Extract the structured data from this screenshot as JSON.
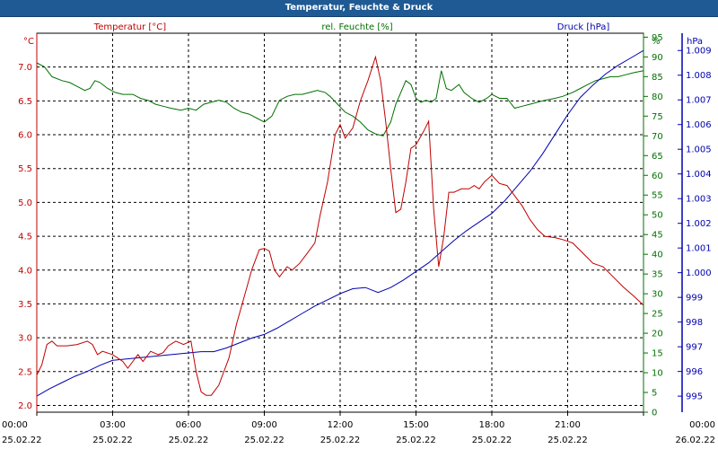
{
  "title": "Temperatur, Feuchte & Druck",
  "colors": {
    "temperature": "#c00000",
    "humidity": "#007000",
    "pressure": "#0000b0",
    "grid": "#000000",
    "titlebar": "#1f5a94"
  },
  "chart_data": {
    "type": "line",
    "title": "Temperatur, Feuchte & Druck",
    "grid": "dashed",
    "x_ticks": [
      {
        "time": "00:00",
        "date": "25.02.22"
      },
      {
        "time": "03:00",
        "date": "25.02.22"
      },
      {
        "time": "06:00",
        "date": "25.02.22"
      },
      {
        "time": "09:00",
        "date": "25.02.22"
      },
      {
        "time": "12:00",
        "date": "25.02.22"
      },
      {
        "time": "15:00",
        "date": "25.02.22"
      },
      {
        "time": "18:00",
        "date": "25.02.22"
      },
      {
        "time": "21:00",
        "date": "25.02.22"
      },
      {
        "time": "00:00",
        "date": "26.02.22"
      }
    ],
    "x_range_hours": [
      0,
      24
    ],
    "axes": {
      "temperature": {
        "label": "Temperatur [°C]",
        "unit": "°C",
        "range": [
          1.9,
          7.5
        ],
        "ticks": [
          "2.0",
          "2.5",
          "3.0",
          "3.5",
          "4.0",
          "4.5",
          "5.0",
          "5.5",
          "6.0",
          "6.5",
          "7.0"
        ]
      },
      "humidity": {
        "label": "rel. Feuchte [%]",
        "unit": "%",
        "range": [
          0,
          96
        ],
        "ticks": [
          "0",
          "5",
          "10",
          "15",
          "20",
          "25",
          "30",
          "35",
          "40",
          "45",
          "50",
          "55",
          "60",
          "65",
          "70",
          "75",
          "80",
          "85",
          "90",
          "95"
        ]
      },
      "pressure": {
        "label": "Druck [hPa]",
        "unit": "hPa",
        "range": [
          994.35,
          1009.7
        ],
        "ticks": [
          "995",
          "996",
          "997",
          "998",
          "999",
          "1.000",
          "1.001",
          "1.002",
          "1.003",
          "1.004",
          "1.005",
          "1.006",
          "1.007",
          "1.008",
          "1.009"
        ]
      }
    },
    "series": [
      {
        "name": "Temperatur [°C]",
        "axis": "temperature",
        "points": [
          [
            0,
            2.45
          ],
          [
            0.2,
            2.6
          ],
          [
            0.4,
            2.9
          ],
          [
            0.6,
            2.95
          ],
          [
            0.8,
            2.88
          ],
          [
            1.2,
            2.88
          ],
          [
            1.6,
            2.9
          ],
          [
            2.0,
            2.95
          ],
          [
            2.2,
            2.9
          ],
          [
            2.4,
            2.75
          ],
          [
            2.6,
            2.8
          ],
          [
            3.0,
            2.75
          ],
          [
            3.2,
            2.7
          ],
          [
            3.4,
            2.65
          ],
          [
            3.6,
            2.55
          ],
          [
            3.8,
            2.65
          ],
          [
            4.0,
            2.75
          ],
          [
            4.2,
            2.65
          ],
          [
            4.5,
            2.8
          ],
          [
            4.8,
            2.75
          ],
          [
            5.0,
            2.78
          ],
          [
            5.2,
            2.88
          ],
          [
            5.5,
            2.95
          ],
          [
            5.8,
            2.9
          ],
          [
            6.1,
            2.95
          ],
          [
            6.3,
            2.5
          ],
          [
            6.5,
            2.2
          ],
          [
            6.7,
            2.15
          ],
          [
            6.9,
            2.15
          ],
          [
            7.2,
            2.3
          ],
          [
            7.6,
            2.7
          ],
          [
            7.9,
            3.2
          ],
          [
            8.2,
            3.6
          ],
          [
            8.5,
            4.0
          ],
          [
            8.8,
            4.3
          ],
          [
            9.0,
            4.32
          ],
          [
            9.2,
            4.28
          ],
          [
            9.4,
            4.0
          ],
          [
            9.6,
            3.9
          ],
          [
            9.9,
            4.05
          ],
          [
            10.1,
            4.0
          ],
          [
            10.4,
            4.1
          ],
          [
            10.7,
            4.25
          ],
          [
            11.0,
            4.4
          ],
          [
            11.2,
            4.8
          ],
          [
            11.5,
            5.3
          ],
          [
            11.8,
            6.0
          ],
          [
            12.0,
            6.15
          ],
          [
            12.2,
            5.95
          ],
          [
            12.5,
            6.1
          ],
          [
            12.8,
            6.5
          ],
          [
            13.1,
            6.8
          ],
          [
            13.4,
            7.15
          ],
          [
            13.6,
            6.8
          ],
          [
            13.8,
            6.2
          ],
          [
            14.0,
            5.5
          ],
          [
            14.2,
            4.85
          ],
          [
            14.4,
            4.9
          ],
          [
            14.6,
            5.3
          ],
          [
            14.8,
            5.8
          ],
          [
            15.0,
            5.85
          ],
          [
            15.3,
            6.05
          ],
          [
            15.5,
            6.2
          ],
          [
            15.7,
            4.9
          ],
          [
            15.9,
            4.05
          ],
          [
            16.1,
            4.5
          ],
          [
            16.3,
            5.15
          ],
          [
            16.5,
            5.15
          ],
          [
            16.8,
            5.2
          ],
          [
            17.1,
            5.2
          ],
          [
            17.3,
            5.25
          ],
          [
            17.5,
            5.2
          ],
          [
            17.7,
            5.3
          ],
          [
            18.0,
            5.4
          ],
          [
            18.3,
            5.28
          ],
          [
            18.6,
            5.25
          ],
          [
            18.9,
            5.1
          ],
          [
            19.2,
            4.95
          ],
          [
            19.5,
            4.75
          ],
          [
            19.8,
            4.6
          ],
          [
            20.1,
            4.5
          ],
          [
            20.5,
            4.48
          ],
          [
            20.8,
            4.45
          ],
          [
            21.2,
            4.4
          ],
          [
            21.6,
            4.25
          ],
          [
            22.0,
            4.1
          ],
          [
            22.4,
            4.05
          ],
          [
            22.8,
            3.9
          ],
          [
            23.2,
            3.75
          ],
          [
            23.6,
            3.62
          ],
          [
            24.0,
            3.48
          ]
        ]
      },
      {
        "name": "rel. Feuchte [%]",
        "axis": "humidity",
        "points": [
          [
            0,
            88.5
          ],
          [
            0.3,
            87.5
          ],
          [
            0.6,
            85
          ],
          [
            1.0,
            84
          ],
          [
            1.3,
            83.5
          ],
          [
            1.6,
            82.5
          ],
          [
            1.9,
            81.5
          ],
          [
            2.1,
            82
          ],
          [
            2.3,
            84
          ],
          [
            2.5,
            83.5
          ],
          [
            2.8,
            82
          ],
          [
            3.1,
            81
          ],
          [
            3.4,
            80.5
          ],
          [
            3.8,
            80.5
          ],
          [
            4.1,
            79.5
          ],
          [
            4.4,
            79
          ],
          [
            4.7,
            78
          ],
          [
            5.0,
            77.5
          ],
          [
            5.3,
            77
          ],
          [
            5.7,
            76.5
          ],
          [
            6.0,
            77
          ],
          [
            6.3,
            76.5
          ],
          [
            6.6,
            78
          ],
          [
            6.9,
            78.5
          ],
          [
            7.2,
            79
          ],
          [
            7.5,
            78.5
          ],
          [
            7.8,
            77
          ],
          [
            8.1,
            76
          ],
          [
            8.4,
            75.5
          ],
          [
            8.7,
            74.5
          ],
          [
            9.0,
            73.5
          ],
          [
            9.3,
            75
          ],
          [
            9.6,
            79
          ],
          [
            9.9,
            80
          ],
          [
            10.2,
            80.5
          ],
          [
            10.5,
            80.5
          ],
          [
            10.8,
            81
          ],
          [
            11.1,
            81.5
          ],
          [
            11.4,
            81
          ],
          [
            11.6,
            80
          ],
          [
            11.9,
            78
          ],
          [
            12.2,
            76
          ],
          [
            12.5,
            75
          ],
          [
            12.8,
            73.5
          ],
          [
            13.1,
            71.5
          ],
          [
            13.4,
            70.5
          ],
          [
            13.7,
            70
          ],
          [
            14.0,
            73.5
          ],
          [
            14.2,
            78
          ],
          [
            14.4,
            81
          ],
          [
            14.6,
            84
          ],
          [
            14.8,
            83
          ],
          [
            15.0,
            79.5
          ],
          [
            15.2,
            78.5
          ],
          [
            15.4,
            79
          ],
          [
            15.6,
            78.5
          ],
          [
            15.8,
            79.5
          ],
          [
            16.0,
            86.5
          ],
          [
            16.2,
            82
          ],
          [
            16.4,
            81.5
          ],
          [
            16.7,
            83
          ],
          [
            16.9,
            81
          ],
          [
            17.2,
            79.5
          ],
          [
            17.5,
            78.5
          ],
          [
            17.8,
            79.5
          ],
          [
            18.0,
            80.5
          ],
          [
            18.3,
            79.5
          ],
          [
            18.6,
            79.5
          ],
          [
            18.9,
            77
          ],
          [
            19.2,
            77.5
          ],
          [
            19.5,
            78
          ],
          [
            19.8,
            78.5
          ],
          [
            20.1,
            79
          ],
          [
            20.5,
            79.5
          ],
          [
            20.8,
            80
          ],
          [
            21.2,
            81
          ],
          [
            21.5,
            82
          ],
          [
            21.8,
            83
          ],
          [
            22.1,
            84
          ],
          [
            22.4,
            84.5
          ],
          [
            22.7,
            85
          ],
          [
            23.0,
            85
          ],
          [
            23.3,
            85.5
          ],
          [
            23.6,
            86
          ],
          [
            24.0,
            86.5
          ]
        ]
      },
      {
        "name": "Druck [hPa]",
        "axis": "pressure",
        "points": [
          [
            0,
            995.0
          ],
          [
            0.5,
            995.3
          ],
          [
            1.0,
            995.55
          ],
          [
            1.5,
            995.8
          ],
          [
            2.0,
            996.0
          ],
          [
            2.5,
            996.25
          ],
          [
            3.0,
            996.45
          ],
          [
            3.5,
            996.5
          ],
          [
            4.0,
            996.55
          ],
          [
            4.5,
            996.6
          ],
          [
            5.0,
            996.65
          ],
          [
            5.5,
            996.7
          ],
          [
            6.0,
            996.75
          ],
          [
            6.5,
            996.8
          ],
          [
            7.0,
            996.8
          ],
          [
            7.5,
            996.95
          ],
          [
            8.0,
            997.15
          ],
          [
            8.5,
            997.35
          ],
          [
            9.0,
            997.5
          ],
          [
            9.5,
            997.75
          ],
          [
            10.0,
            998.05
          ],
          [
            10.5,
            998.35
          ],
          [
            11.0,
            998.65
          ],
          [
            11.5,
            998.9
          ],
          [
            12.0,
            999.15
          ],
          [
            12.5,
            999.35
          ],
          [
            13.0,
            999.4
          ],
          [
            13.5,
            999.2
          ],
          [
            14.0,
            999.4
          ],
          [
            14.5,
            999.7
          ],
          [
            15.0,
            1000.05
          ],
          [
            15.5,
            1000.4
          ],
          [
            16.0,
            1000.85
          ],
          [
            16.5,
            1001.3
          ],
          [
            17.0,
            1001.7
          ],
          [
            17.5,
            1002.05
          ],
          [
            18.0,
            1002.4
          ],
          [
            18.5,
            1002.9
          ],
          [
            19.0,
            1003.5
          ],
          [
            19.5,
            1004.1
          ],
          [
            20.0,
            1004.8
          ],
          [
            20.5,
            1005.6
          ],
          [
            21.0,
            1006.4
          ],
          [
            21.5,
            1007.1
          ],
          [
            22.0,
            1007.6
          ],
          [
            22.5,
            1008.05
          ],
          [
            23.0,
            1008.4
          ],
          [
            23.5,
            1008.7
          ],
          [
            24.0,
            1009.0
          ]
        ]
      }
    ]
  }
}
